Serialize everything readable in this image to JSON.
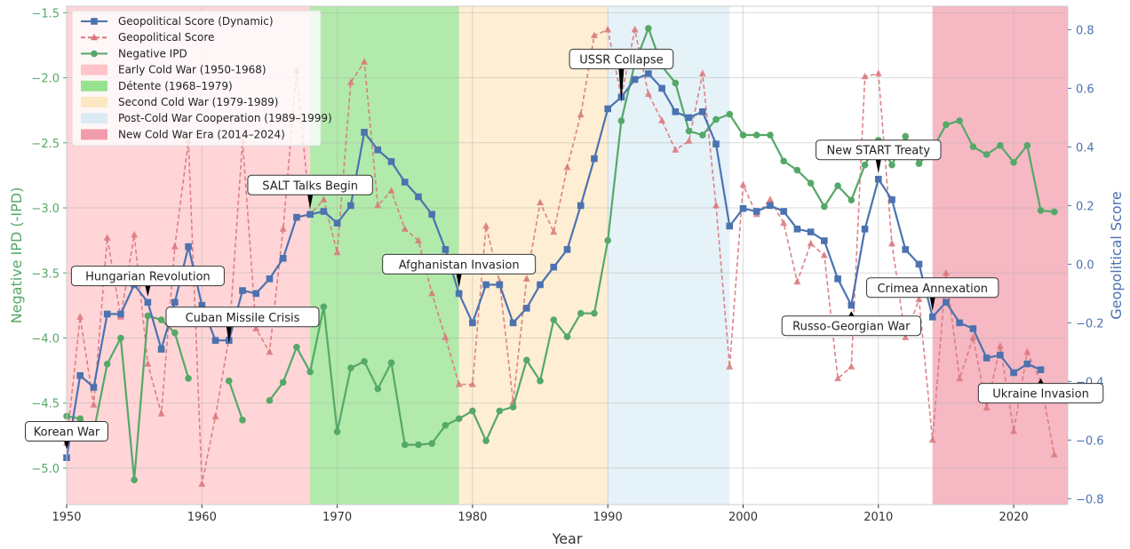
{
  "chart_data": {
    "type": "line",
    "xlabel": "Year",
    "ylabel_left": "Negative IPD (-IPD)",
    "ylabel_right": "Geopolitical Score",
    "xlim": [
      1950,
      2024
    ],
    "ylim_left": [
      -5.28,
      -1.45
    ],
    "ylim_right": [
      -0.82,
      0.88
    ],
    "xticks": [
      "1950",
      "1960",
      "1970",
      "1980",
      "1990",
      "2000",
      "2010",
      "2020"
    ],
    "yticks_left": [
      "−5.0",
      "−4.5",
      "−4.0",
      "−3.5",
      "−3.0",
      "−2.5",
      "−2.0",
      "−1.5"
    ],
    "yticks_right": [
      "−0.8",
      "−0.6",
      "−0.4",
      "−0.2",
      "0.0",
      "0.2",
      "0.4",
      "0.6",
      "0.8"
    ],
    "colors": {
      "dynamic": "#4c72b0",
      "score": "#dd8452",
      "score_line": "#d9777a",
      "ipd": "#55a868",
      "left_axis": "#55a868",
      "right_axis": "#4c72b0"
    },
    "periods": [
      {
        "label": "Early Cold War (1950-1968)",
        "start": 1950,
        "end": 1968,
        "color": "#ffb3b8",
        "opacity": 0.55
      },
      {
        "label": "Détente (1968–1979)",
        "start": 1968,
        "end": 1979,
        "color": "#7ddc72",
        "opacity": 0.6
      },
      {
        "label": "Second Cold War (1979-1989)",
        "start": 1979,
        "end": 1990,
        "color": "#fde3b6",
        "opacity": 0.6
      },
      {
        "label": "Post-Cold War Cooperation (1989–1999)",
        "start": 1990,
        "end": 1999,
        "color": "#cfe7f3",
        "opacity": 0.55
      },
      {
        "label": "New Cold War Era (2014–2024)",
        "start": 2014,
        "end": 2024,
        "color": "#ee7d92",
        "opacity": 0.55
      }
    ],
    "series": [
      {
        "name": "Geopolitical Score (Dynamic)",
        "axis": "right",
        "style": "solid-square",
        "x": [
          1950,
          1951,
          1952,
          1953,
          1954,
          1955,
          1956,
          1957,
          1958,
          1959,
          1960,
          1961,
          1962,
          1963,
          1964,
          1965,
          1966,
          1967,
          1968,
          1969,
          1970,
          1971,
          1972,
          1973,
          1974,
          1975,
          1976,
          1977,
          1978,
          1979,
          1980,
          1981,
          1982,
          1983,
          1984,
          1985,
          1986,
          1987,
          1988,
          1989,
          1990,
          1991,
          1992,
          1993,
          1994,
          1995,
          1996,
          1997,
          1998,
          1999,
          2000,
          2001,
          2002,
          2003,
          2004,
          2005,
          2006,
          2007,
          2008,
          2009,
          2010,
          2011,
          2012,
          2013,
          2014,
          2015,
          2016,
          2017,
          2018,
          2019,
          2020,
          2021,
          2022
        ],
        "values": [
          -0.66,
          -0.38,
          -0.42,
          -0.17,
          -0.17,
          -0.07,
          -0.13,
          -0.29,
          -0.13,
          0.06,
          -0.14,
          -0.26,
          -0.26,
          -0.09,
          -0.1,
          -0.05,
          0.02,
          0.16,
          0.17,
          0.18,
          0.14,
          0.2,
          0.45,
          0.39,
          0.35,
          0.28,
          0.23,
          0.17,
          0.05,
          -0.1,
          -0.2,
          -0.07,
          -0.07,
          -0.2,
          -0.15,
          -0.07,
          -0.01,
          0.05,
          0.2,
          0.36,
          0.53,
          0.57,
          0.63,
          0.65,
          0.6,
          0.52,
          0.5,
          0.52,
          0.41,
          0.13,
          0.19,
          0.18,
          0.2,
          0.18,
          0.12,
          0.11,
          0.08,
          -0.05,
          -0.14,
          0.12,
          0.29,
          0.22,
          0.05,
          0.0,
          -0.18,
          -0.13,
          -0.2,
          -0.22,
          -0.32,
          -0.31,
          -0.37,
          -0.34,
          -0.36
        ]
      },
      {
        "name": "Geopolitical Score",
        "axis": "right",
        "style": "dashed-triangle",
        "x": [
          1950,
          1951,
          1952,
          1953,
          1954,
          1955,
          1956,
          1957,
          1958,
          1959,
          1960,
          1961,
          1962,
          1963,
          1964,
          1965,
          1966,
          1967,
          1968,
          1969,
          1970,
          1971,
          1972,
          1973,
          1974,
          1975,
          1976,
          1977,
          1978,
          1979,
          1980,
          1981,
          1982,
          1983,
          1984,
          1985,
          1986,
          1987,
          1988,
          1989,
          1990,
          1991,
          1992,
          1993,
          1994,
          1995,
          1996,
          1997,
          1998,
          1999,
          2000,
          2001,
          2002,
          2003,
          2004,
          2005,
          2006,
          2007,
          2008,
          2009,
          2010,
          2011,
          2012,
          2013,
          2014,
          2015,
          2016,
          2017,
          2018,
          2019,
          2020,
          2021,
          2022,
          2023
        ],
        "values": [
          -0.61,
          -0.18,
          -0.48,
          0.09,
          -0.18,
          0.1,
          -0.34,
          -0.51,
          0.06,
          0.42,
          -0.75,
          -0.52,
          -0.25,
          0.42,
          -0.22,
          -0.3,
          0.12,
          0.66,
          0.17,
          0.22,
          0.04,
          0.62,
          0.69,
          0.2,
          0.25,
          0.12,
          0.08,
          -0.1,
          -0.25,
          -0.41,
          -0.41,
          0.13,
          -0.06,
          -0.47,
          -0.05,
          0.21,
          0.11,
          0.33,
          0.51,
          0.78,
          0.8,
          0.57,
          0.8,
          0.58,
          0.49,
          0.39,
          0.42,
          0.65,
          0.2,
          -0.35,
          0.27,
          0.17,
          0.22,
          0.14,
          -0.06,
          0.07,
          0.03,
          -0.39,
          -0.35,
          0.64,
          0.65,
          0.07,
          -0.25,
          -0.12,
          -0.6,
          -0.03,
          -0.39,
          -0.25,
          -0.49,
          -0.28,
          -0.57,
          -0.3,
          -0.4,
          -0.65
        ]
      },
      {
        "name": "Negative IPD",
        "axis": "left",
        "style": "solid-circle",
        "x": [
          1950,
          1951,
          1952,
          1953,
          1954,
          1955,
          1956,
          1957,
          1958,
          1959,
          1960,
          1961,
          1962,
          1963,
          1964,
          1965,
          1966,
          1967,
          1968,
          1969,
          1970,
          1971,
          1972,
          1973,
          1974,
          1975,
          1976,
          1977,
          1978,
          1979,
          1980,
          1981,
          1982,
          1983,
          1984,
          1985,
          1986,
          1987,
          1988,
          1989,
          1990,
          1991,
          1992,
          1993,
          1994,
          1995,
          1996,
          1997,
          1998,
          1999,
          2000,
          2001,
          2002,
          2003,
          2004,
          2005,
          2006,
          2007,
          2008,
          2009,
          2010,
          2011,
          2012,
          2013,
          2014,
          2015,
          2016,
          2017,
          2018,
          2019,
          2020,
          2021,
          2022,
          2023
        ],
        "values": [
          -4.6,
          -4.62,
          -4.72,
          -4.2,
          -4.0,
          -5.09,
          -3.83,
          -3.86,
          -3.96,
          -4.31,
          null,
          null,
          -4.33,
          -4.63,
          null,
          -4.48,
          -4.34,
          -4.07,
          -4.26,
          -3.76,
          -4.72,
          -4.23,
          -4.18,
          -4.39,
          -4.19,
          -4.82,
          -4.82,
          -4.81,
          -4.67,
          -4.62,
          -4.56,
          -4.79,
          -4.56,
          -4.53,
          -4.17,
          -4.33,
          -3.86,
          -3.99,
          -3.81,
          -3.81,
          -3.25,
          -2.33,
          -1.89,
          -1.62,
          -1.91,
          -2.04,
          -2.41,
          -2.44,
          -2.32,
          -2.28,
          -2.44,
          -2.44,
          -2.44,
          -2.64,
          -2.71,
          -2.81,
          -2.99,
          -2.83,
          -2.94,
          -2.67,
          -2.48,
          -2.67,
          -2.45,
          -2.66,
          -2.55,
          -2.36,
          -2.33,
          -2.53,
          -2.59,
          -2.52,
          -2.65,
          -2.52,
          -3.02,
          -3.03
        ]
      }
    ],
    "annotations": [
      {
        "label": "Korean War",
        "year": 1950,
        "box_x": 1950,
        "box_score": -0.57,
        "arrow_score": -0.63
      },
      {
        "label": "Hungarian Revolution",
        "year": 1956,
        "box_x": 1956,
        "box_score": -0.04,
        "arrow_score": -0.11
      },
      {
        "label": "Cuban Missile Crisis",
        "year": 1962,
        "box_x": 1963,
        "box_score": -0.18,
        "arrow_score": -0.27
      },
      {
        "label": "SALT Talks Begin",
        "year": 1968,
        "box_x": 1968,
        "box_score": 0.27,
        "arrow_score": 0.19
      },
      {
        "label": "Afghanistan Invasion",
        "year": 1979,
        "box_x": 1979,
        "box_score": 0.0,
        "arrow_score": -0.08
      },
      {
        "label": "USSR Collapse",
        "year": 1991,
        "box_x": 1991,
        "box_score": 0.7,
        "arrow_score": 0.55
      },
      {
        "label": "New START Treaty",
        "year": 2010,
        "box_x": 2010,
        "box_score": 0.39,
        "arrow_score": 0.31
      },
      {
        "label": "Russo-Georgian War",
        "year": 2008,
        "box_x": 2008,
        "box_score": -0.21,
        "arrow_score": -0.16
      },
      {
        "label": "Crimea Annexation",
        "year": 2014,
        "box_x": 2014,
        "box_score": -0.08,
        "arrow_score": -0.16
      },
      {
        "label": "Ukraine Invasion",
        "year": 2022,
        "box_x": 2022,
        "box_score": -0.44,
        "arrow_score": -0.39
      }
    ]
  }
}
